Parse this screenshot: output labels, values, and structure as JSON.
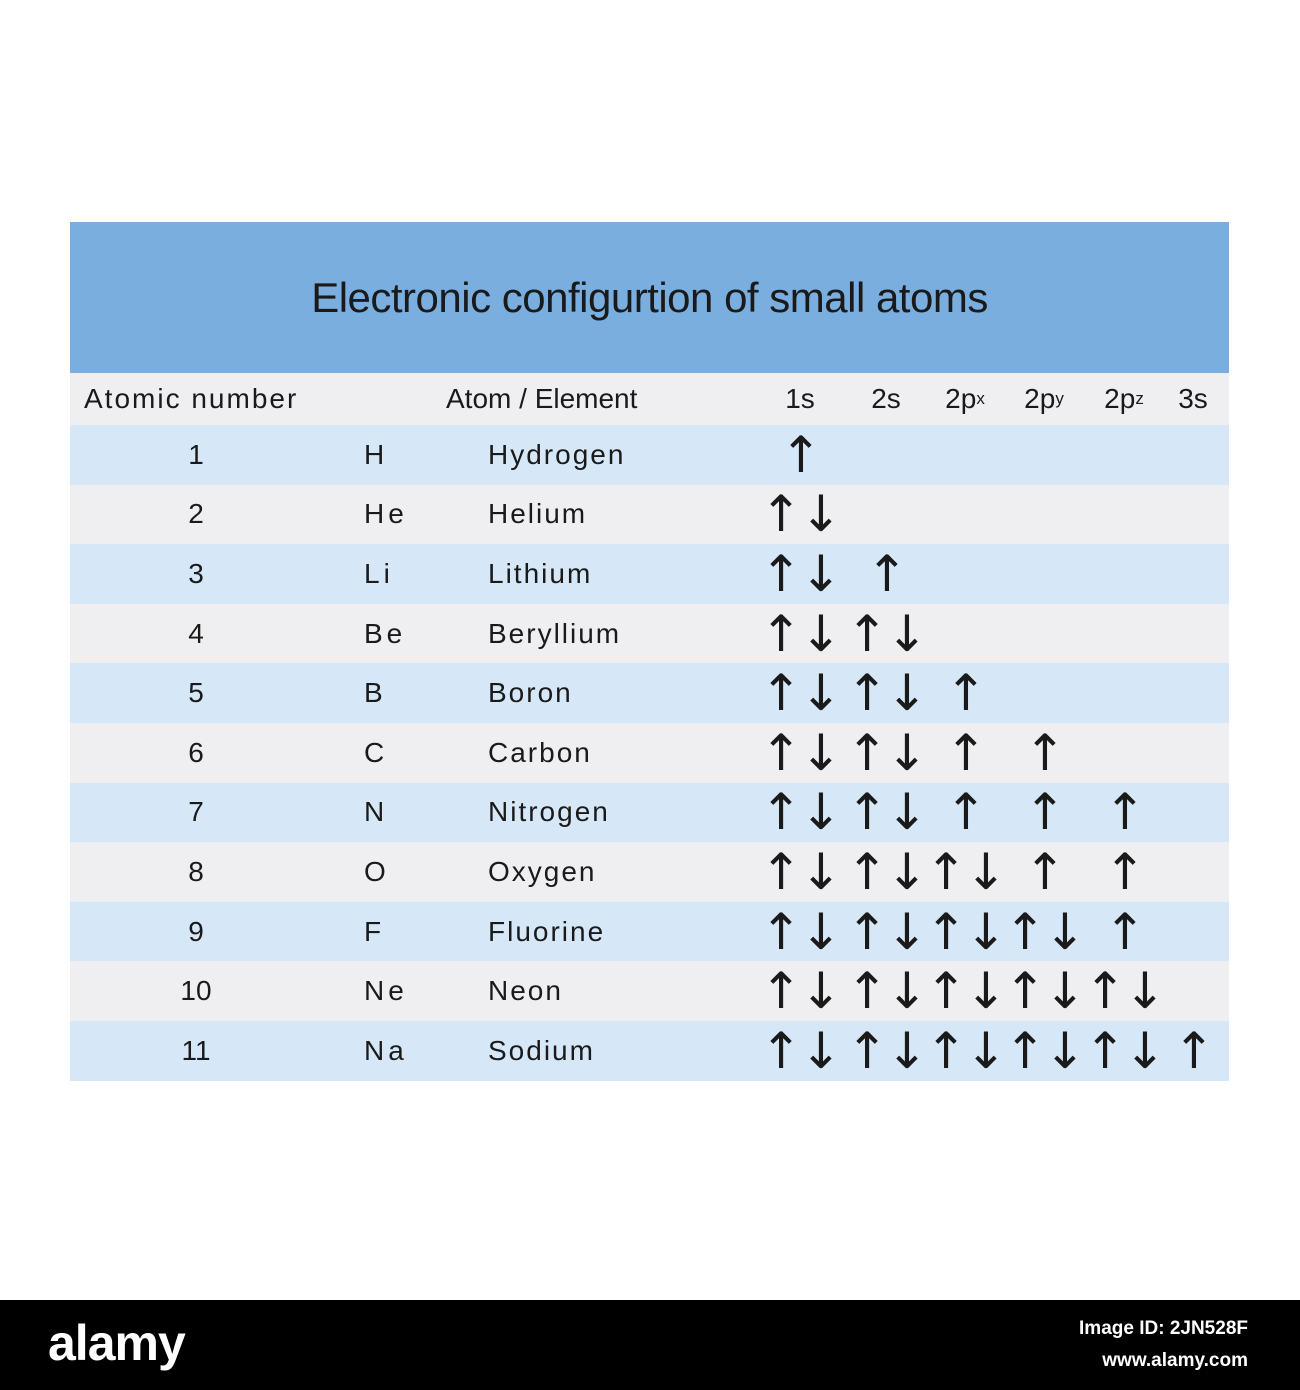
{
  "title": "Electronic configurtion of small atoms",
  "headers": {
    "atomic_number": "Atomic number",
    "atom_element": "Atom / Element",
    "orbitals": [
      {
        "base": "1s",
        "sub": ""
      },
      {
        "base": "2s",
        "sub": ""
      },
      {
        "base": "2p",
        "sub": "x"
      },
      {
        "base": "2p",
        "sub": "y"
      },
      {
        "base": "2p",
        "sub": "z"
      },
      {
        "base": "3s",
        "sub": ""
      }
    ]
  },
  "rows": [
    {
      "num": "1",
      "symbol": "H",
      "name": "Hydrogen",
      "orbitals": [
        "↑",
        "",
        "",
        "",
        "",
        ""
      ]
    },
    {
      "num": "2",
      "symbol": "He",
      "name": "Helium",
      "orbitals": [
        "↑↓",
        "",
        "",
        "",
        "",
        ""
      ]
    },
    {
      "num": "3",
      "symbol": "Li",
      "name": "Lithium",
      "orbitals": [
        "↑↓",
        "↑",
        "",
        "",
        "",
        ""
      ]
    },
    {
      "num": "4",
      "symbol": "Be",
      "name": "Beryllium",
      "orbitals": [
        "↑↓",
        "↑↓",
        "",
        "",
        "",
        ""
      ]
    },
    {
      "num": "5",
      "symbol": "B",
      "name": "Boron",
      "orbitals": [
        "↑↓",
        "↑↓",
        "↑",
        "",
        "",
        ""
      ]
    },
    {
      "num": "6",
      "symbol": "C",
      "name": "Carbon",
      "orbitals": [
        "↑↓",
        "↑↓",
        "↑",
        "↑",
        "",
        ""
      ]
    },
    {
      "num": "7",
      "symbol": "N",
      "name": "Nitrogen",
      "orbitals": [
        "↑↓",
        "↑↓",
        "↑",
        "↑",
        "↑",
        ""
      ]
    },
    {
      "num": "8",
      "symbol": "O",
      "name": "Oxygen",
      "orbitals": [
        "↑↓",
        "↑↓",
        "↑↓",
        "↑",
        "↑",
        ""
      ]
    },
    {
      "num": "9",
      "symbol": "F",
      "name": "Fluorine",
      "orbitals": [
        "↑↓",
        "↑↓",
        "↑↓",
        "↑↓",
        "↑",
        ""
      ]
    },
    {
      "num": "10",
      "symbol": "Ne",
      "name": "Neon",
      "orbitals": [
        "↑↓",
        "↑↓",
        "↑↓",
        "↑↓",
        "↑↓",
        ""
      ]
    },
    {
      "num": "11",
      "symbol": "Na",
      "name": "Sodium",
      "orbitals": [
        "↑↓",
        "↑↓",
        "↑↓",
        "↑↓",
        "↑↓",
        "↑"
      ]
    }
  ],
  "colors": {
    "title_band": "#7aaede",
    "row_blue": "#d6e8f8",
    "row_grey": "#efeff1"
  },
  "footer": {
    "brand": "alamy",
    "image_id": "Image ID: 2JN528F",
    "site": "www.alamy.com"
  }
}
